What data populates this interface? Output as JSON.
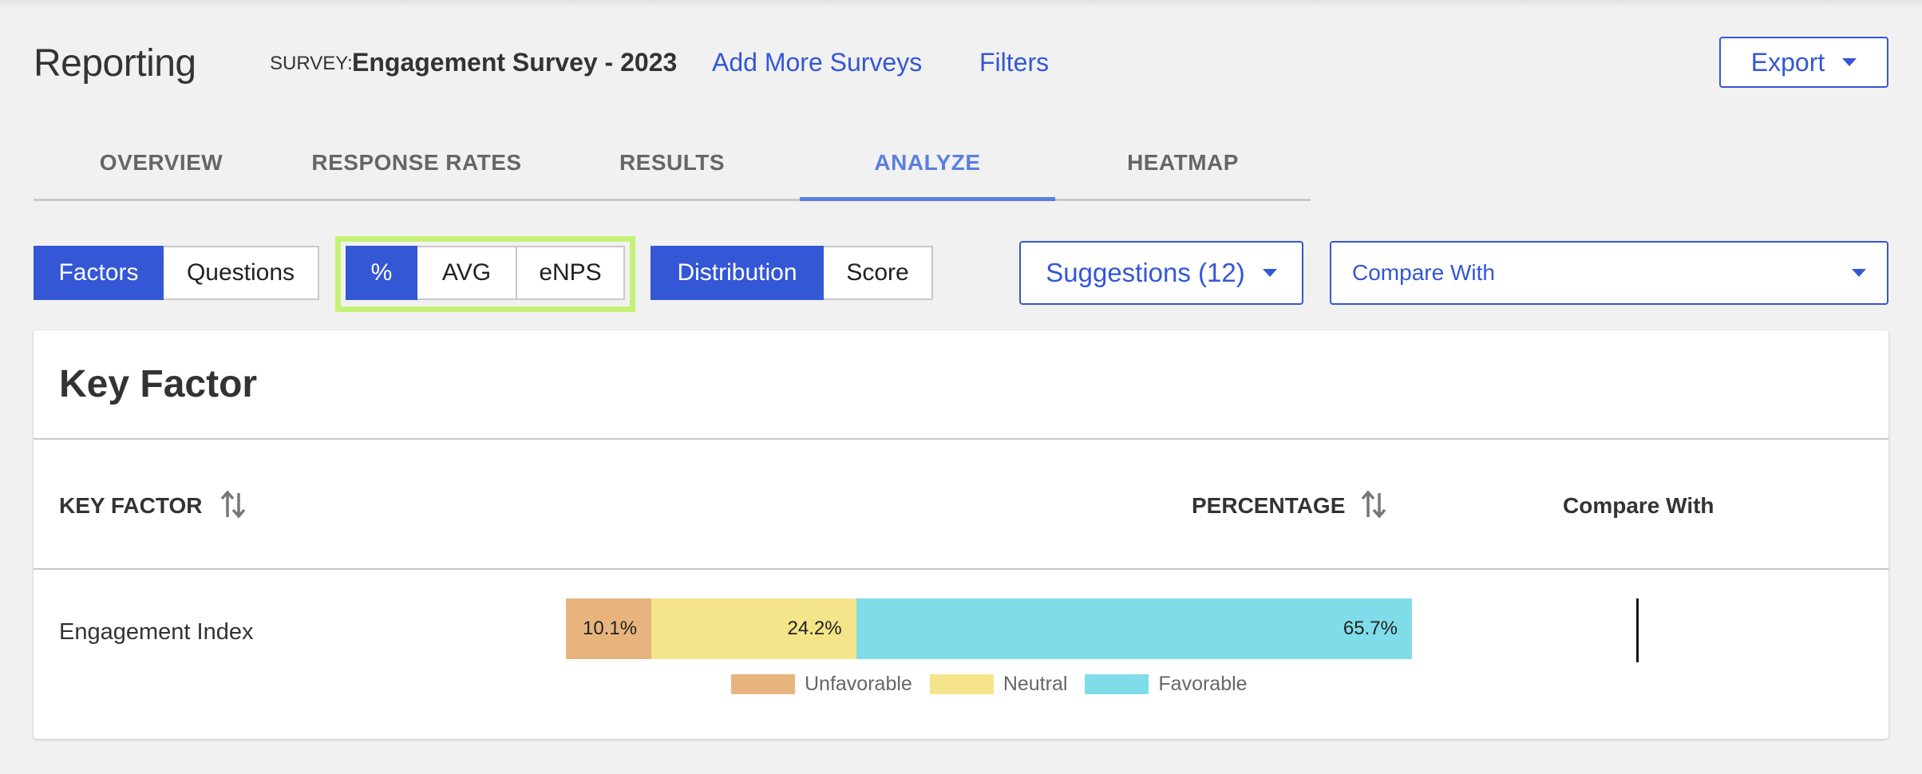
{
  "header": {
    "title": "Reporting",
    "survey_prefix": "SURVEY:",
    "survey_name": "Engagement Survey - 2023",
    "add_more_surveys": "Add More Surveys",
    "filters": "Filters",
    "export_label": "Export"
  },
  "tabs": [
    {
      "label": "OVERVIEW",
      "active": false
    },
    {
      "label": "RESPONSE RATES",
      "active": false
    },
    {
      "label": "RESULTS",
      "active": false
    },
    {
      "label": "ANALYZE",
      "active": true
    },
    {
      "label": "HEATMAP",
      "active": false
    }
  ],
  "toggles": {
    "view": {
      "factors": "Factors",
      "questions": "Questions",
      "selected": "Factors"
    },
    "metric": {
      "percent": "%",
      "avg": "AVG",
      "enps": "eNPS",
      "selected": "%"
    },
    "mode": {
      "distribution": "Distribution",
      "score": "Score",
      "selected": "Distribution"
    }
  },
  "suggestions_label": "Suggestions (12)",
  "compare_with_label": "Compare With",
  "card": {
    "title": "Key Factor",
    "columns": {
      "key_factor": "KEY FACTOR",
      "percentage": "PERCENTAGE",
      "compare_with": "Compare With"
    },
    "rows": [
      {
        "label": "Engagement Index",
        "segments": [
          {
            "name": "Unfavorable",
            "value": 10.1,
            "label": "10.1%",
            "color": "#e8b47e"
          },
          {
            "name": "Neutral",
            "value": 24.2,
            "label": "24.2%",
            "color": "#f5e58a"
          },
          {
            "name": "Favorable",
            "value": 65.7,
            "label": "65.7%",
            "color": "#7fdde9"
          }
        ]
      }
    ],
    "legend": [
      {
        "label": "Unfavorable",
        "color": "#e8b47e"
      },
      {
        "label": "Neutral",
        "color": "#f5e58a"
      },
      {
        "label": "Favorable",
        "color": "#7fdde9"
      }
    ]
  },
  "colors": {
    "accent": "#3457d5",
    "tab_active": "#5b7fe0",
    "highlight": "#c5f274"
  }
}
